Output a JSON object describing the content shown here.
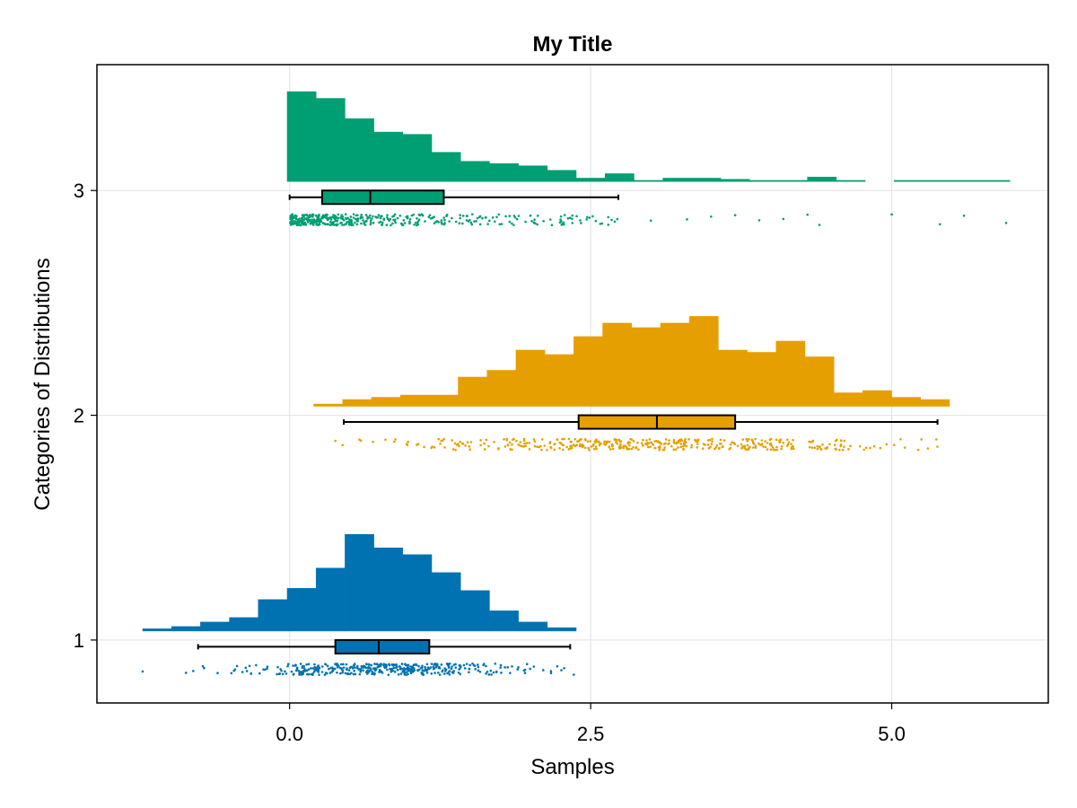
{
  "chart_data": {
    "type": "raincloud",
    "title": "My Title",
    "xlabel": "Samples",
    "ylabel": "Categories of Distributions",
    "xlim": [
      -1.6,
      6.3
    ],
    "ylim": [
      0.72,
      3.56
    ],
    "x_ticks": [
      {
        "value": 0.0,
        "label": "0.0"
      },
      {
        "value": 2.5,
        "label": "2.5"
      },
      {
        "value": 5.0,
        "label": "5.0"
      }
    ],
    "y_ticks": [
      {
        "value": 1,
        "label": "1"
      },
      {
        "value": 2,
        "label": "2"
      },
      {
        "value": 3,
        "label": "3"
      }
    ],
    "grid": true,
    "series": [
      {
        "category": 1,
        "color": "#0072b2",
        "histogram": {
          "bin_width": 0.24,
          "bins": [
            {
              "x0": -1.22,
              "h": 0.01
            },
            {
              "x0": -0.98,
              "h": 0.02
            },
            {
              "x0": -0.74,
              "h": 0.04
            },
            {
              "x0": -0.5,
              "h": 0.06
            },
            {
              "x0": -0.26,
              "h": 0.14
            },
            {
              "x0": -0.02,
              "h": 0.19
            },
            {
              "x0": 0.22,
              "h": 0.28
            },
            {
              "x0": 0.46,
              "h": 0.43
            },
            {
              "x0": 0.7,
              "h": 0.37
            },
            {
              "x0": 0.94,
              "h": 0.34
            },
            {
              "x0": 1.18,
              "h": 0.26
            },
            {
              "x0": 1.42,
              "h": 0.18
            },
            {
              "x0": 1.66,
              "h": 0.09
            },
            {
              "x0": 1.9,
              "h": 0.04
            },
            {
              "x0": 2.14,
              "h": 0.015
            }
          ]
        },
        "box": {
          "whisker_low": -0.76,
          "q1": 0.38,
          "median": 0.74,
          "q3": 1.16,
          "whisker_high": 2.33
        },
        "points": {
          "min": -1.22,
          "max": 2.36,
          "count": 420,
          "outliers": [
            -1.22,
            -0.86,
            -0.8,
            -0.72,
            2.28,
            2.36
          ]
        }
      },
      {
        "category": 2,
        "color": "#e69f00",
        "histogram": {
          "bin_width": 0.24,
          "bins": [
            {
              "x0": 0.2,
              "h": 0.01
            },
            {
              "x0": 0.44,
              "h": 0.03
            },
            {
              "x0": 0.68,
              "h": 0.04
            },
            {
              "x0": 0.92,
              "h": 0.05
            },
            {
              "x0": 1.16,
              "h": 0.05
            },
            {
              "x0": 1.4,
              "h": 0.13
            },
            {
              "x0": 1.64,
              "h": 0.16
            },
            {
              "x0": 1.88,
              "h": 0.25
            },
            {
              "x0": 2.12,
              "h": 0.23
            },
            {
              "x0": 2.36,
              "h": 0.31
            },
            {
              "x0": 2.6,
              "h": 0.37
            },
            {
              "x0": 2.84,
              "h": 0.35
            },
            {
              "x0": 3.08,
              "h": 0.37
            },
            {
              "x0": 3.32,
              "h": 0.4
            },
            {
              "x0": 3.56,
              "h": 0.25
            },
            {
              "x0": 3.8,
              "h": 0.24
            },
            {
              "x0": 4.04,
              "h": 0.29
            },
            {
              "x0": 4.28,
              "h": 0.22
            },
            {
              "x0": 4.52,
              "h": 0.06
            },
            {
              "x0": 4.76,
              "h": 0.07
            },
            {
              "x0": 5.0,
              "h": 0.04
            },
            {
              "x0": 5.24,
              "h": 0.03
            }
          ]
        },
        "box": {
          "whisker_low": 0.45,
          "q1": 2.4,
          "median": 3.05,
          "q3": 3.7,
          "whisker_high": 5.38
        },
        "points": {
          "min": 0.38,
          "max": 5.4,
          "count": 420,
          "outliers": [
            0.38,
            0.44,
            0.58,
            5.02,
            5.22,
            5.38
          ]
        }
      },
      {
        "category": 3,
        "color": "#009e73",
        "histogram": {
          "bin_width": 0.24,
          "bins": [
            {
              "x0": -0.02,
              "h": 0.4
            },
            {
              "x0": 0.22,
              "h": 0.37
            },
            {
              "x0": 0.46,
              "h": 0.28
            },
            {
              "x0": 0.7,
              "h": 0.22
            },
            {
              "x0": 0.94,
              "h": 0.21
            },
            {
              "x0": 1.18,
              "h": 0.13
            },
            {
              "x0": 1.42,
              "h": 0.09
            },
            {
              "x0": 1.66,
              "h": 0.08
            },
            {
              "x0": 1.9,
              "h": 0.07
            },
            {
              "x0": 2.14,
              "h": 0.05
            },
            {
              "x0": 2.38,
              "h": 0.015
            },
            {
              "x0": 2.62,
              "h": 0.035
            },
            {
              "x0": 2.86,
              "h": 0.005
            },
            {
              "x0": 3.1,
              "h": 0.015
            },
            {
              "x0": 3.34,
              "h": 0.015
            },
            {
              "x0": 3.58,
              "h": 0.01
            },
            {
              "x0": 3.82,
              "h": 0.005
            },
            {
              "x0": 4.06,
              "h": 0.005
            },
            {
              "x0": 4.3,
              "h": 0.02
            },
            {
              "x0": 4.54,
              "h": 0.005
            },
            {
              "x0": 5.02,
              "h": 0.005
            },
            {
              "x0": 5.26,
              "h": 0.005
            },
            {
              "x0": 5.5,
              "h": 0.005
            },
            {
              "x0": 5.74,
              "h": 0.005
            }
          ]
        },
        "box": {
          "whisker_low": 0.0,
          "q1": 0.27,
          "median": 0.67,
          "q3": 1.28,
          "whisker_high": 2.73
        },
        "points": {
          "min": 0.0,
          "max": 5.95,
          "count": 420,
          "outliers": [
            3.0,
            3.3,
            3.5,
            3.7,
            3.9,
            4.1,
            4.3,
            4.4,
            5.0,
            5.4,
            5.6,
            5.95
          ]
        }
      }
    ]
  }
}
